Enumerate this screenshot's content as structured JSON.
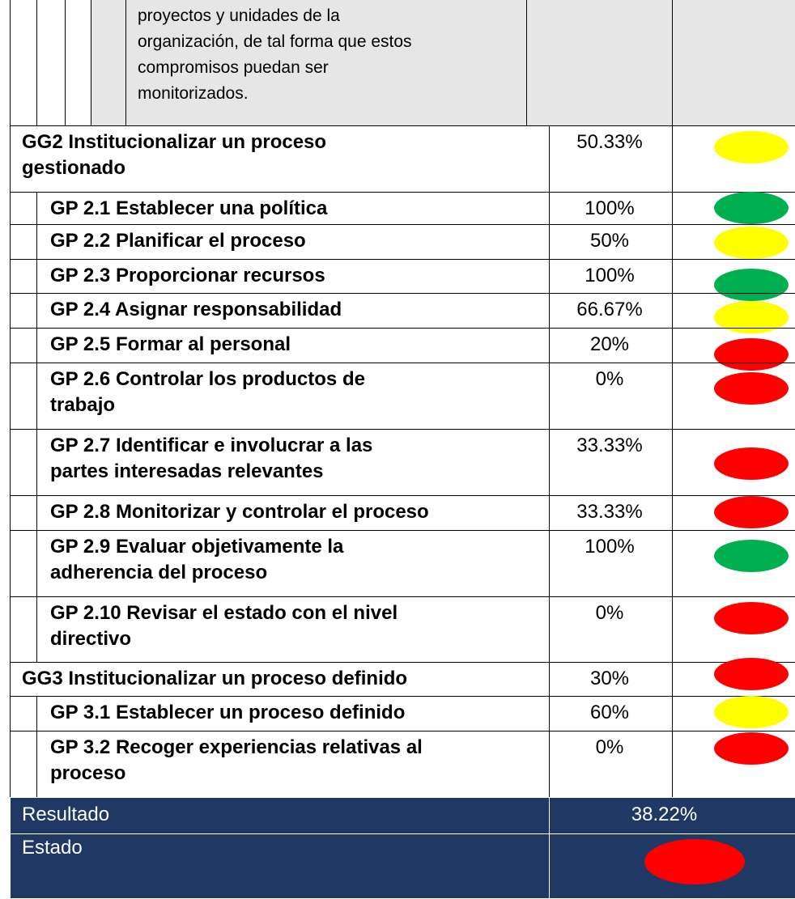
{
  "table": {
    "top_lines": [
      "proyectos y unidades de la",
      "organización, de tal forma que estos",
      "compromisos puedan ser",
      "monitorizados."
    ],
    "groups": [
      {
        "label": [
          "GG2 Institucionalizar un proceso",
          "gestionado"
        ],
        "value": "50.33%",
        "color": "#ffff00",
        "items": [
          {
            "label": [
              "GP 2.1 Establecer una política"
            ],
            "value": "100%",
            "color": "#00b050"
          },
          {
            "label": [
              "GP 2.2 Planificar el proceso"
            ],
            "value": "50%",
            "color": "#ffff00"
          },
          {
            "label": [
              "GP 2.3 Proporcionar recursos"
            ],
            "value": "100%",
            "color": "#00b050"
          },
          {
            "label": [
              "GP 2.4 Asignar responsabilidad"
            ],
            "value": "66.67%",
            "color": "#ffff00"
          },
          {
            "label": [
              "GP 2.5 Formar al personal"
            ],
            "value": "20%",
            "color": "#ff0000"
          },
          {
            "label": [
              "GP 2.6 Controlar los productos de",
              "trabajo"
            ],
            "value": "0%",
            "color": "#ff0000"
          },
          {
            "label": [
              "GP 2.7 Identificar e involucrar a las",
              "partes interesadas relevantes"
            ],
            "value": "33.33%",
            "color": "#ff0000"
          },
          {
            "label": [
              "GP 2.8 Monitorizar y controlar el proceso"
            ],
            "value": "33.33%",
            "color": "#ff0000"
          },
          {
            "label": [
              "GP 2.9 Evaluar objetivamente la",
              "adherencia del proceso"
            ],
            "value": "100%",
            "color": "#00b050"
          },
          {
            "label": [
              "GP 2.10 Revisar el estado con el nivel",
              "directivo"
            ],
            "value": "0%",
            "color": "#ff0000"
          }
        ]
      },
      {
        "label": [
          "GG3 Institucionalizar un proceso definido"
        ],
        "value": "30%",
        "color": "#ff0000",
        "items": [
          {
            "label": [
              "GP 3.1 Establecer un proceso definido"
            ],
            "value": "60%",
            "color": "#ffff00"
          },
          {
            "label": [
              "GP 3.2 Recoger experiencias relativas al",
              "proceso"
            ],
            "value": "0%",
            "color": "#ff0000"
          }
        ]
      }
    ],
    "result": {
      "label": "Resultado",
      "value": "38.22%"
    },
    "status": {
      "label": "Estado",
      "color": "#ff0000"
    }
  }
}
